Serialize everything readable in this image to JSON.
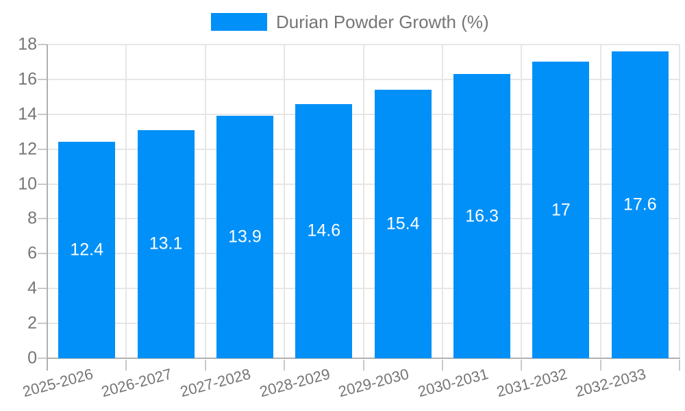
{
  "chart_data": {
    "type": "bar",
    "title": "Durian Powder Growth (%)",
    "legend_position": "top",
    "categories": [
      "2025-2026",
      "2026-2027",
      "2027-2028",
      "2028-2029",
      "2029-2030",
      "2030-2031",
      "2031-2032",
      "2032-2033"
    ],
    "series": [
      {
        "name": "Durian Powder Growth (%)",
        "values": [
          12.4,
          13.1,
          13.9,
          14.6,
          15.4,
          16.3,
          17,
          17.6
        ],
        "value_labels": [
          "12.4",
          "13.1",
          "13.9",
          "14.6",
          "15.4",
          "16.3",
          "17",
          "17.6"
        ]
      }
    ],
    "xlabel": "",
    "ylabel": "",
    "ylim": [
      0,
      18
    ],
    "yticks": [
      0,
      2,
      4,
      6,
      8,
      10,
      12,
      14,
      16,
      18
    ],
    "grid": true,
    "colors": {
      "bar": "#0090f8",
      "grid": "#e6e6e6",
      "axis": "#b0b0b0",
      "tick": "#c9c9c9",
      "axis_text": "#757575",
      "value_label": "#ffffff",
      "background": "#ffffff"
    }
  }
}
